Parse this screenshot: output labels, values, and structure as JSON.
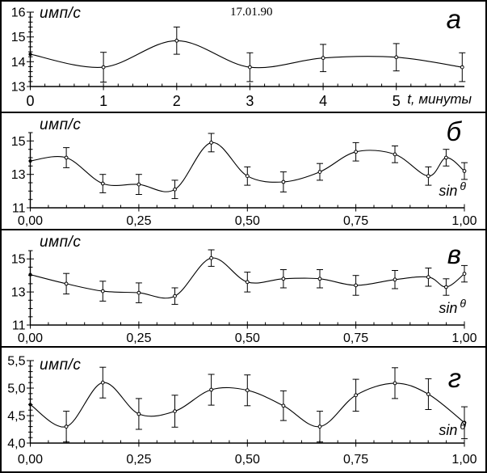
{
  "figure": {
    "background": "#ffffff",
    "line_color": "#000000",
    "date_title": "17.01.90"
  },
  "chart_data": [
    {
      "type": "line",
      "error_bars": true,
      "panel_label": "а",
      "title": "17.01.90",
      "ylabel": "имп/с",
      "xlabel": "t, минуты",
      "xlabel_sup": "",
      "xlim": [
        0,
        5.93
      ],
      "ylim": [
        13,
        16
      ],
      "xticks": [
        0,
        1,
        2,
        3,
        4,
        5
      ],
      "xtick_labels": [
        "0",
        "1",
        "2",
        "3",
        "4",
        "5"
      ],
      "x_minor_step": 0.2,
      "yticks": [
        13,
        14,
        15,
        16
      ],
      "ytick_labels": [
        "13",
        "14",
        "15",
        "16"
      ],
      "y_minor_step": 0.2,
      "x": [
        0,
        1,
        2,
        3,
        4,
        5,
        5.9
      ],
      "y": [
        14.3,
        13.78,
        14.85,
        13.78,
        14.15,
        14.18,
        13.78
      ],
      "yerr": [
        0,
        0.6,
        0.55,
        0.58,
        0.55,
        0.55,
        0.58
      ]
    },
    {
      "type": "line",
      "error_bars": true,
      "panel_label": "б",
      "title": "",
      "ylabel": "имп/с",
      "xlabel": "sin",
      "xlabel_sup": "θ",
      "xlim": [
        0,
        1
      ],
      "ylim": [
        11,
        15.5
      ],
      "xticks": [
        0,
        0.25,
        0.5,
        0.75,
        1
      ],
      "xtick_labels": [
        "0,00",
        "0,25",
        "0,50",
        "0,75",
        "1,00"
      ],
      "x_minor_step": 0.0416667,
      "yticks": [
        11,
        13,
        15
      ],
      "ytick_labels": [
        "11",
        "13",
        "15"
      ],
      "y_minor_step": 0.5,
      "x": [
        0,
        0.083,
        0.167,
        0.25,
        0.333,
        0.417,
        0.5,
        0.583,
        0.667,
        0.75,
        0.84,
        0.917,
        0.958,
        1.0
      ],
      "y": [
        13.8,
        14.0,
        12.45,
        12.4,
        12.1,
        14.9,
        12.9,
        12.55,
        13.15,
        14.35,
        14.2,
        12.9,
        14.0,
        13.2
      ],
      "yerr": [
        0,
        0.6,
        0.55,
        0.6,
        0.55,
        0.55,
        0.55,
        0.6,
        0.5,
        0.55,
        0.5,
        0.55,
        0.5,
        0.5
      ]
    },
    {
      "type": "line",
      "error_bars": true,
      "panel_label": "в",
      "title": "",
      "ylabel": "имп/с",
      "xlabel": "sin",
      "xlabel_sup": "θ",
      "xlim": [
        0,
        1
      ],
      "ylim": [
        11,
        15.5
      ],
      "xticks": [
        0,
        0.25,
        0.5,
        0.75,
        1
      ],
      "xtick_labels": [
        "0,00",
        "0,25",
        "0,50",
        "0,75",
        "1,00"
      ],
      "x_minor_step": 0.0416667,
      "yticks": [
        11,
        13,
        15
      ],
      "ytick_labels": [
        "11",
        "13",
        "15"
      ],
      "y_minor_step": 0.5,
      "x": [
        0,
        0.083,
        0.167,
        0.25,
        0.333,
        0.417,
        0.5,
        0.583,
        0.667,
        0.75,
        0.84,
        0.917,
        0.958,
        1.0
      ],
      "y": [
        14.05,
        13.5,
        13.05,
        12.95,
        12.75,
        15.05,
        13.6,
        13.8,
        13.8,
        13.4,
        13.75,
        13.9,
        13.3,
        14.1
      ],
      "yerr": [
        0,
        0.62,
        0.6,
        0.6,
        0.5,
        0.5,
        0.6,
        0.55,
        0.55,
        0.6,
        0.55,
        0.55,
        0.5,
        0.5
      ]
    },
    {
      "type": "line",
      "error_bars": true,
      "panel_label": "г",
      "title": "",
      "ylabel": "имп/с",
      "xlabel": "sin",
      "xlabel_sup": "θ",
      "xlim": [
        0,
        1
      ],
      "ylim": [
        4,
        5.5
      ],
      "xticks": [
        0,
        0.25,
        0.5,
        0.75,
        1
      ],
      "xtick_labels": [
        "0,00",
        "0,25",
        "0,50",
        "0,75",
        "1,00"
      ],
      "x_minor_step": 0.0416667,
      "yticks": [
        4,
        4.5,
        5,
        5.5
      ],
      "ytick_labels": [
        "4,0",
        "4,5",
        "5,0",
        "5,5"
      ],
      "y_minor_step": 0.1,
      "x": [
        0,
        0.083,
        0.167,
        0.25,
        0.333,
        0.417,
        0.5,
        0.583,
        0.667,
        0.75,
        0.84,
        0.917,
        1.0
      ],
      "y": [
        4.7,
        4.3,
        5.1,
        4.53,
        4.58,
        4.97,
        4.96,
        4.68,
        4.3,
        4.87,
        5.09,
        4.89,
        4.37
      ],
      "yerr": [
        0,
        0.28,
        0.28,
        0.28,
        0.29,
        0.28,
        0.28,
        0.27,
        0.28,
        0.29,
        0.28,
        0.28,
        0.29
      ]
    }
  ]
}
